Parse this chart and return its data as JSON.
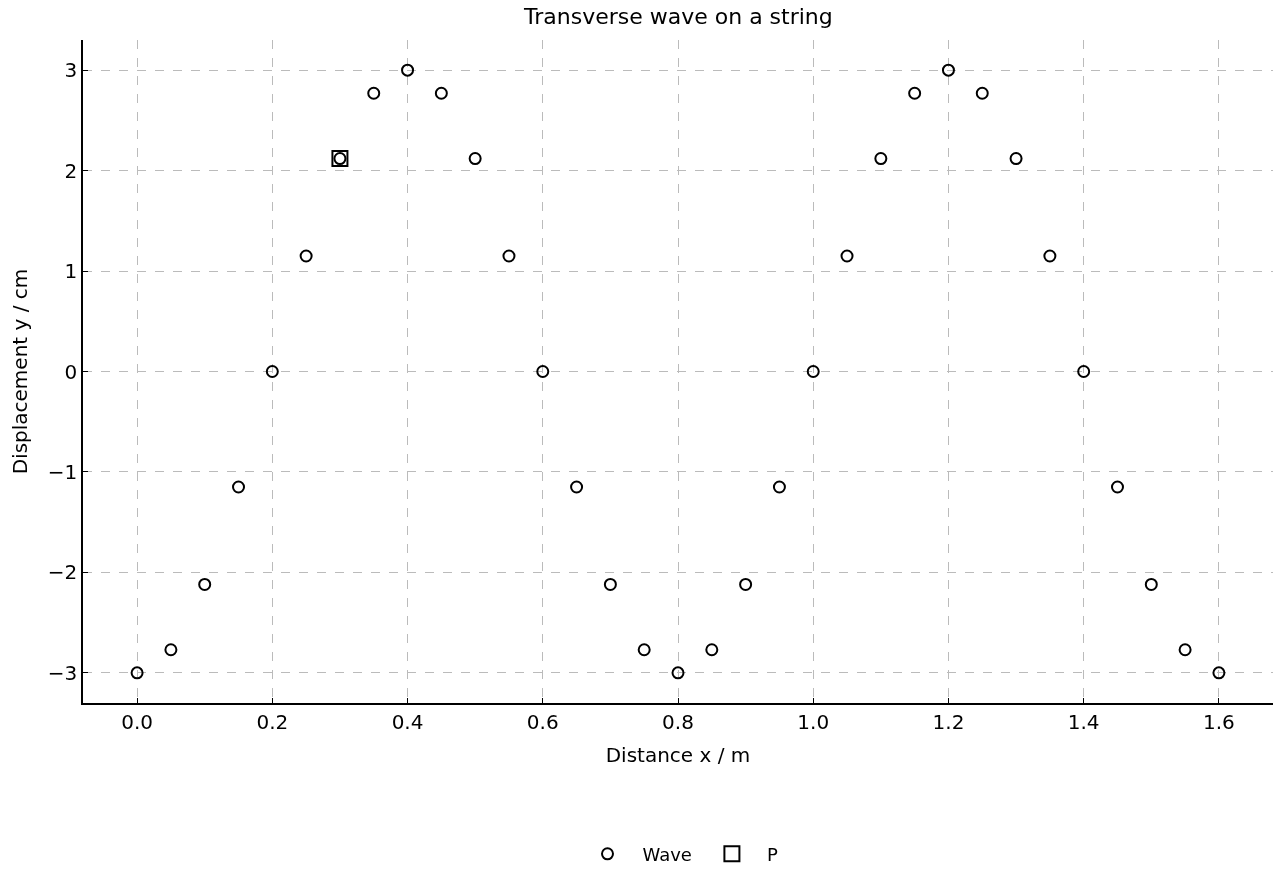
{
  "chart_data": {
    "type": "scatter",
    "title": "Transverse wave on a string",
    "xlabel": "Distance x / m",
    "ylabel": "Displacement y / cm",
    "series": [
      {
        "name": "Wave",
        "color": "#000000",
        "marker": "circle",
        "x": [
          0.0,
          0.05,
          0.1,
          0.15,
          0.2,
          0.25,
          0.3,
          0.35,
          0.4,
          0.45,
          0.5,
          0.55,
          0.6,
          0.65,
          0.7,
          0.75,
          0.8,
          0.85,
          0.9,
          0.95,
          1.0,
          1.05,
          1.1,
          1.15,
          1.2,
          1.25,
          1.3,
          1.35,
          1.4,
          1.45,
          1.5,
          1.55,
          1.6
        ],
        "values": [
          -3,
          -2.77,
          -2.12,
          -1.15,
          0,
          1.15,
          2.12,
          2.77,
          3,
          2.77,
          2.12,
          1.15,
          0,
          -1.15,
          -2.12,
          -2.77,
          -3,
          -2.77,
          -2.12,
          -1.15,
          0,
          1.15,
          2.12,
          2.77,
          3,
          2.77,
          2.12,
          1.15,
          0,
          -1.15,
          -2.12,
          -2.77,
          -3
        ]
      },
      {
        "name": "P",
        "color": "#000000",
        "marker": "square",
        "x": [
          0.3
        ],
        "values": [
          2.12
        ]
      }
    ],
    "xlim": [
      -0.08,
      1.68
    ],
    "xticks": [
      {
        "value": 0,
        "label": "0.0"
      },
      0.2,
      0.4,
      0.6,
      0.8,
      {
        "value": 1,
        "label": "1.0"
      },
      1.2,
      1.4,
      1.6
    ],
    "ylim": [
      -3.3,
      3.3
    ],
    "yticks": [
      {
        "value": -3,
        "label": "−3"
      },
      {
        "value": -2,
        "label": "−2"
      },
      {
        "value": -1,
        "label": "−1"
      },
      0,
      1,
      2,
      3
    ],
    "grid": true,
    "legend": "bottom",
    "line_style": "dashed"
  }
}
